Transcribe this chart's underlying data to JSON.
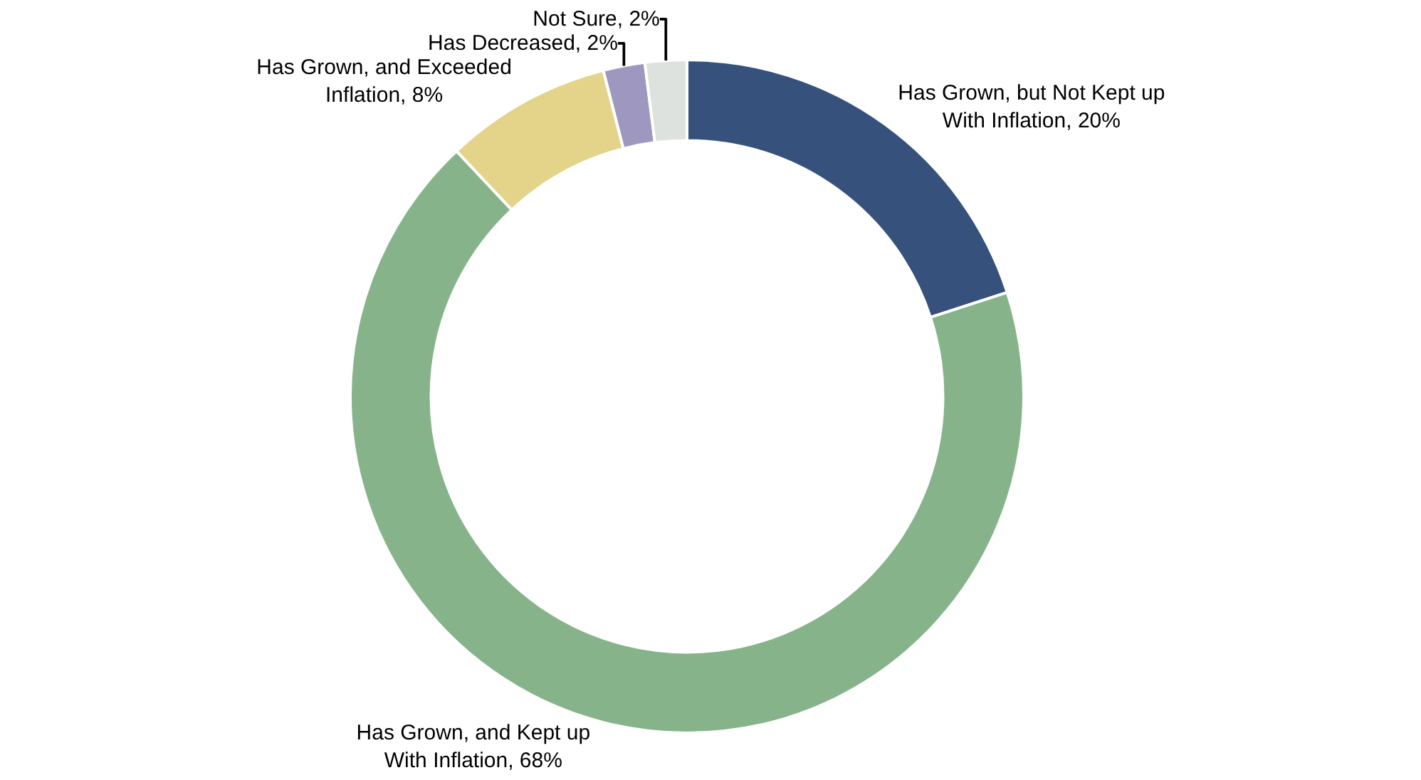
{
  "chart_data": {
    "type": "donut",
    "categories": [
      "Has Grown, but Not Kept up With Inflation",
      "Has Grown, and Kept up With Inflation",
      "Has Grown, and Exceeded Inflation",
      "Has Decreased",
      "Not Sure"
    ],
    "values": [
      20,
      68,
      8,
      2,
      2
    ],
    "value_labels": [
      "20%",
      "68%",
      "8%",
      "2%",
      "2%"
    ],
    "colors": [
      "#36527c",
      "#87b38b",
      "#e3d48a",
      "#9e97bf",
      "#dde2de"
    ],
    "legend": false
  }
}
